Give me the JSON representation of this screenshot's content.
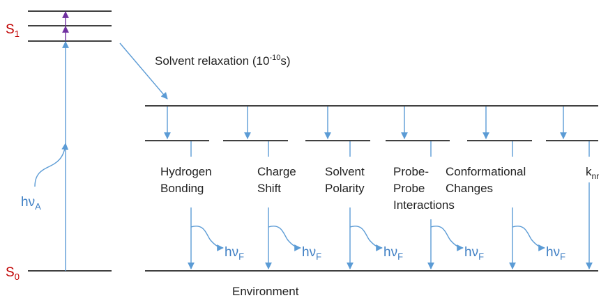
{
  "states": {
    "excited": {
      "symbol": "S",
      "subscript": "1"
    },
    "ground": {
      "symbol": "S",
      "subscript": "0"
    }
  },
  "absorption": {
    "symbol": "hν",
    "subscript": "A"
  },
  "relaxation": {
    "text": "Solvent relaxation (10",
    "superscript": "-10",
    "suffix": "s)"
  },
  "pathways": [
    {
      "lines": [
        "Hydrogen",
        "Bonding"
      ]
    },
    {
      "lines": [
        "Charge",
        "Shift"
      ]
    },
    {
      "lines": [
        "Solvent",
        "Polarity"
      ]
    },
    {
      "lines": [
        "Probe-",
        "Probe",
        "Interactions"
      ]
    },
    {
      "lines": [
        "Conformational",
        "Changes"
      ]
    }
  ],
  "nonradiative": {
    "symbol": "k",
    "subscript": "nr"
  },
  "emission": {
    "symbol": "hν",
    "subscript": "F"
  },
  "environment": "Environment"
}
